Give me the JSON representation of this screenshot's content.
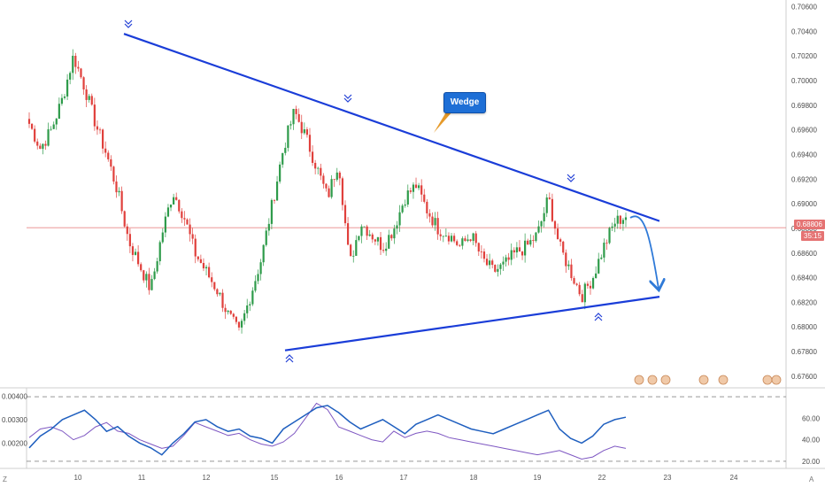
{
  "chart_data": [
    {
      "type": "candlestick",
      "y_ticks": [
        "0.70600",
        "0.70400",
        "0.70200",
        "0.70000",
        "0.69800",
        "0.69600",
        "0.69400",
        "0.69200",
        "0.69000",
        "0.68800",
        "0.68600",
        "0.68400",
        "0.68200",
        "0.68000",
        "0.67800",
        "0.67600"
      ],
      "ylim": [
        0.6752,
        0.7064
      ],
      "x_ticks": [
        "10",
        "11",
        "12",
        "15",
        "16",
        "17",
        "18",
        "19",
        "22",
        "23",
        "24"
      ],
      "price_line": 0.68806,
      "price_label": "0.68806",
      "countdown_label": "35:15",
      "annotation": "Wedge",
      "ohlc_anchor_closes": [
        0.6965,
        0.6945,
        0.696,
        0.6985,
        0.702,
        0.6995,
        0.6965,
        0.694,
        0.691,
        0.687,
        0.685,
        0.683,
        0.6875,
        0.691,
        0.689,
        0.686,
        0.6845,
        0.683,
        0.681,
        0.6795,
        0.6825,
        0.6855,
        0.69,
        0.6945,
        0.6975,
        0.6955,
        0.693,
        0.6905,
        0.6935,
        0.685,
        0.6885,
        0.6875,
        0.6865,
        0.688,
        0.6905,
        0.6915,
        0.6895,
        0.688,
        0.6875,
        0.6865,
        0.6875,
        0.6855,
        0.6845,
        0.685,
        0.686,
        0.6865,
        0.6875,
        0.6905,
        0.6865,
        0.6845,
        0.6825,
        0.684,
        0.6865,
        0.6885,
        0.689
      ],
      "upper_trendline": [
        [
          0.7038
        ],
        [
          0.6886
        ]
      ],
      "lower_trendline": [
        [
          0.6781
        ],
        [
          0.68245
        ]
      ]
    },
    {
      "type": "line",
      "y_ticks": [
        "0.00400",
        "0.00300",
        "0.00200"
      ],
      "ylim": [
        0.001,
        0.0042
      ],
      "series": [
        {
          "color": "#1f5fbf",
          "values": [
            0.0018,
            0.0023,
            0.0026,
            0.003,
            0.0032,
            0.0034,
            0.003,
            0.0025,
            0.0027,
            0.0023,
            0.002,
            0.0018,
            0.0015,
            0.002,
            0.0024,
            0.0029,
            0.003,
            0.0027,
            0.0025,
            0.0026,
            0.0023,
            0.0022,
            0.002,
            0.0026,
            0.0029,
            0.0032,
            0.0035,
            0.0036,
            0.0033,
            0.0029,
            0.0026,
            0.0028,
            0.003,
            0.0027,
            0.0024,
            0.0028,
            0.003,
            0.0032,
            0.003,
            0.0028,
            0.0026,
            0.0025,
            0.0024,
            0.0026,
            0.0028,
            0.003,
            0.0032,
            0.0034,
            0.0026,
            0.0022,
            0.002,
            0.0023,
            0.0028,
            0.003,
            0.0031
          ]
        }
      ]
    },
    {
      "type": "line",
      "y_ticks": [
        "60.00",
        "40.00",
        "20.00"
      ],
      "ylim": [
        15,
        85
      ],
      "series": [
        {
          "color": "#7e57c2",
          "values": [
            42,
            50,
            52,
            48,
            40,
            44,
            52,
            56,
            48,
            46,
            40,
            36,
            32,
            34,
            44,
            56,
            52,
            48,
            44,
            46,
            40,
            36,
            34,
            38,
            46,
            60,
            74,
            68,
            52,
            48,
            44,
            40,
            38,
            48,
            42,
            46,
            48,
            46,
            42,
            40,
            38,
            36,
            34,
            32,
            30,
            28,
            26,
            28,
            30,
            26,
            22,
            24,
            30,
            34,
            32
          ]
        }
      ],
      "reference_lines": [
        80,
        20
      ]
    }
  ],
  "bottom_labels": {
    "left": "Z",
    "right": "A"
  },
  "colors": {
    "up": "#2e9b4a",
    "down": "#e0403c",
    "trend": "#1a3dd8",
    "projection": "#2f7ad8",
    "price_line": "#e57373"
  }
}
